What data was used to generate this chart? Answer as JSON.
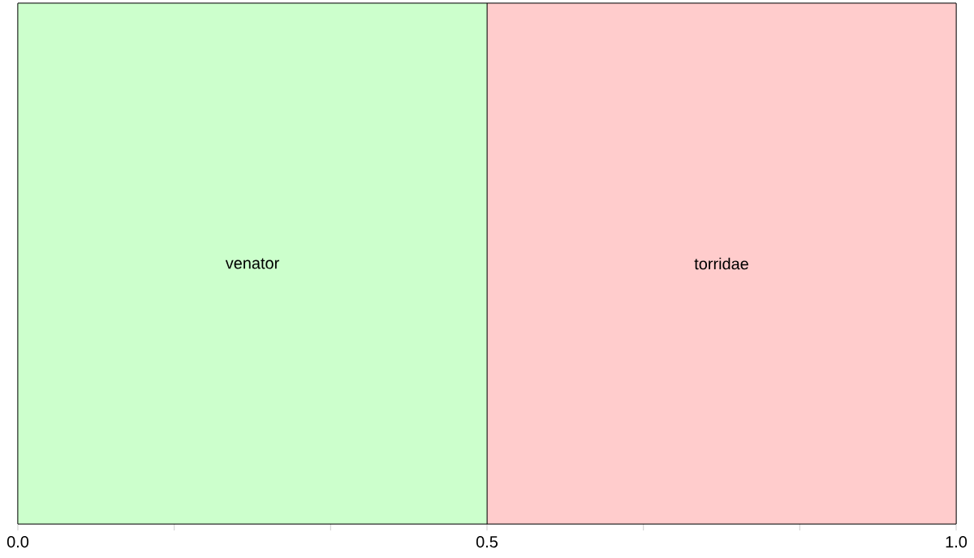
{
  "chart_data": {
    "type": "bar",
    "orientation": "horizontal",
    "stacked": true,
    "categories": [
      null
    ],
    "series": [
      {
        "name": "venator",
        "color": "#ccffcc",
        "values": [
          0.5
        ]
      },
      {
        "name": "torridae",
        "color": "#ffcccc",
        "values": [
          0.5
        ]
      }
    ],
    "xlim": [
      0,
      1
    ],
    "xticks": [
      {
        "value": 0,
        "label": "0.0"
      },
      {
        "value": 0.1667,
        "label": null
      },
      {
        "value": 0.3333,
        "label": null
      },
      {
        "value": 0.5,
        "label": "0.5"
      },
      {
        "value": 0.6667,
        "label": null
      },
      {
        "value": 0.8333,
        "label": null
      },
      {
        "value": 1,
        "label": "1.0"
      }
    ]
  }
}
